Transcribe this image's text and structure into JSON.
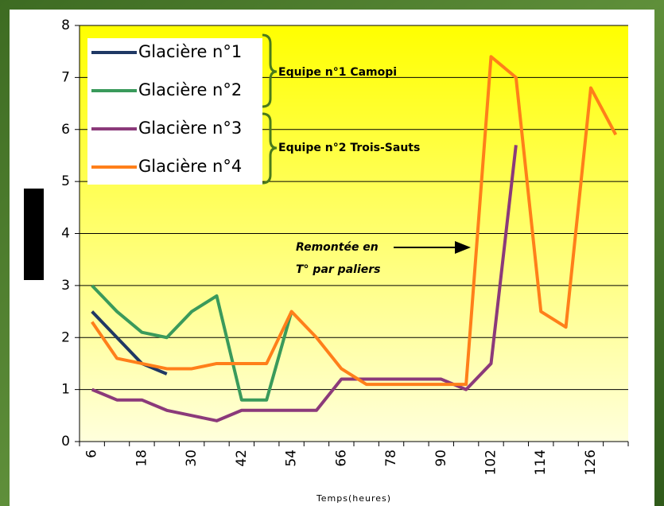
{
  "chart_data": {
    "type": "line",
    "x_label": "Temps(heures)",
    "categories": [
      6,
      null,
      18,
      null,
      30,
      null,
      42,
      null,
      54,
      null,
      66,
      null,
      78,
      null,
      90,
      null,
      102,
      null,
      114,
      null,
      126,
      null
    ],
    "series": [
      {
        "name": "Glacière n°1",
        "color": "#1f3864",
        "values": [
          2.5,
          2.0,
          1.5,
          1.3,
          null,
          null,
          null,
          null,
          null,
          null,
          null,
          null,
          null,
          null,
          null,
          null,
          null,
          null,
          null,
          null,
          null,
          null
        ]
      },
      {
        "name": "Glacière n°2",
        "color": "#3a9a5b",
        "values": [
          3.0,
          2.5,
          2.1,
          2.0,
          2.5,
          2.8,
          0.8,
          0.8,
          2.5,
          null,
          null,
          null,
          null,
          null,
          null,
          null,
          null,
          null,
          null,
          null,
          null,
          null
        ]
      },
      {
        "name": "Glacière n°3",
        "color": "#8b3a7a",
        "values": [
          1.0,
          0.8,
          0.8,
          0.6,
          0.5,
          0.4,
          0.6,
          0.6,
          0.6,
          0.6,
          1.2,
          1.2,
          1.2,
          1.2,
          1.2,
          1.0,
          1.5,
          5.7,
          null,
          null,
          null,
          null
        ]
      },
      {
        "name": "Glacière n°4",
        "color": "#ff7f1a",
        "values": [
          2.3,
          1.6,
          1.5,
          1.4,
          1.4,
          1.5,
          1.5,
          1.5,
          2.5,
          2.0,
          1.4,
          1.1,
          1.1,
          1.1,
          1.1,
          1.1,
          7.4,
          7.0,
          2.5,
          2.2,
          6.8,
          5.9
        ]
      }
    ],
    "ylim": [
      0,
      8
    ],
    "yticks": [
      0,
      1,
      2,
      3,
      4,
      5,
      6,
      7,
      8
    ],
    "grid": true,
    "legend": "upper left",
    "annotations": [
      "Equipe n°1 Camopi",
      "Equipe n°2 Trois-Sauts",
      "Remontée en",
      "T° par paliers"
    ]
  }
}
